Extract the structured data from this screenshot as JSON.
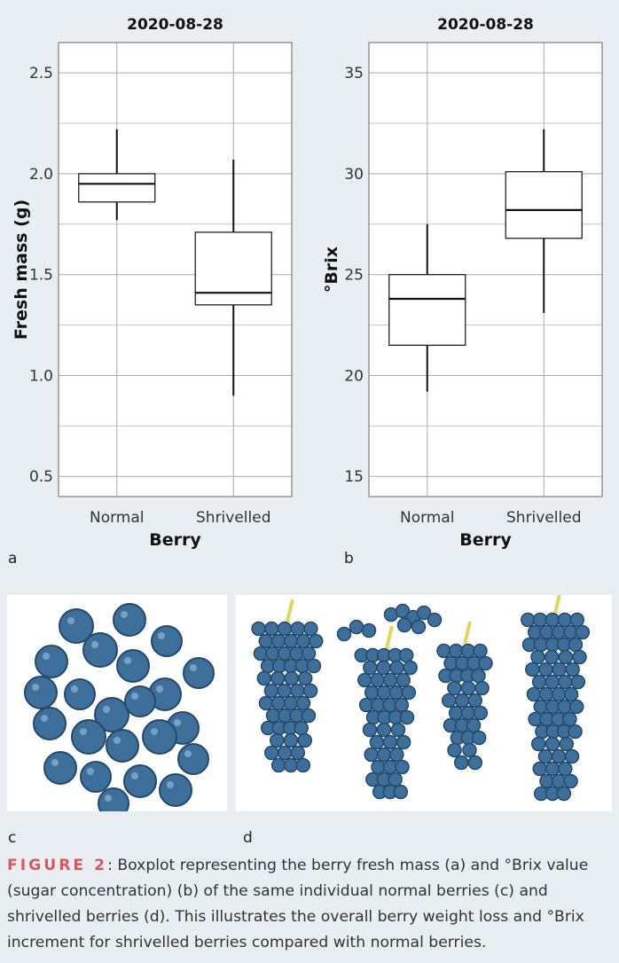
{
  "chart_data": [
    {
      "type": "boxplot",
      "title": "2020-08-28",
      "xlabel": "Berry",
      "ylabel": "Fresh mass (g)",
      "ylim": [
        0.4,
        2.65
      ],
      "yticks": [
        0.5,
        1.0,
        1.5,
        2.0,
        2.5
      ],
      "ytick_labels": [
        "0.5",
        "1.0",
        "1.5",
        "2.0",
        "2.5"
      ],
      "categories": [
        "Normal",
        "Shrivelled"
      ],
      "boxes": [
        {
          "category": "Normal",
          "whisker_low": 1.77,
          "q1": 1.86,
          "median": 1.95,
          "q3": 2.0,
          "whisker_high": 2.22
        },
        {
          "category": "Shrivelled",
          "whisker_low": 0.9,
          "q1": 1.35,
          "median": 1.41,
          "q3": 1.71,
          "whisker_high": 2.07
        }
      ],
      "grid": true
    },
    {
      "type": "boxplot",
      "title": "2020-08-28",
      "xlabel": "Berry",
      "ylabel": "°Brix",
      "ylim": [
        14,
        36.5
      ],
      "yticks": [
        15,
        20,
        25,
        30,
        35
      ],
      "ytick_labels": [
        "15",
        "20",
        "25",
        "30",
        "35"
      ],
      "categories": [
        "Normal",
        "Shrivelled"
      ],
      "boxes": [
        {
          "category": "Normal",
          "whisker_low": 19.2,
          "q1": 21.5,
          "median": 23.8,
          "q3": 25.0,
          "whisker_high": 27.5
        },
        {
          "category": "Shrivelled",
          "whisker_low": 23.1,
          "q1": 26.8,
          "median": 28.2,
          "q3": 30.1,
          "whisker_high": 32.2
        }
      ],
      "grid": true
    }
  ],
  "panels": {
    "a": "a",
    "b": "b",
    "c": "c",
    "d": "d"
  },
  "caption": {
    "label": "FIGURE 2",
    "text": ": Boxplot representing the berry fresh mass (a) and °Brix value (sugar concentration) (b) of the same individual normal berries (c) and shrivelled berries (d). This illustrates the overall berry weight loss and °Brix increment for shrivelled berries compared with normal berries."
  },
  "colors": {
    "background": "#e8eef1",
    "berry": "#3e6f9a",
    "berry_dark": "#24496b",
    "stem": "#e2d65a",
    "caption_label": "#d35a61"
  }
}
